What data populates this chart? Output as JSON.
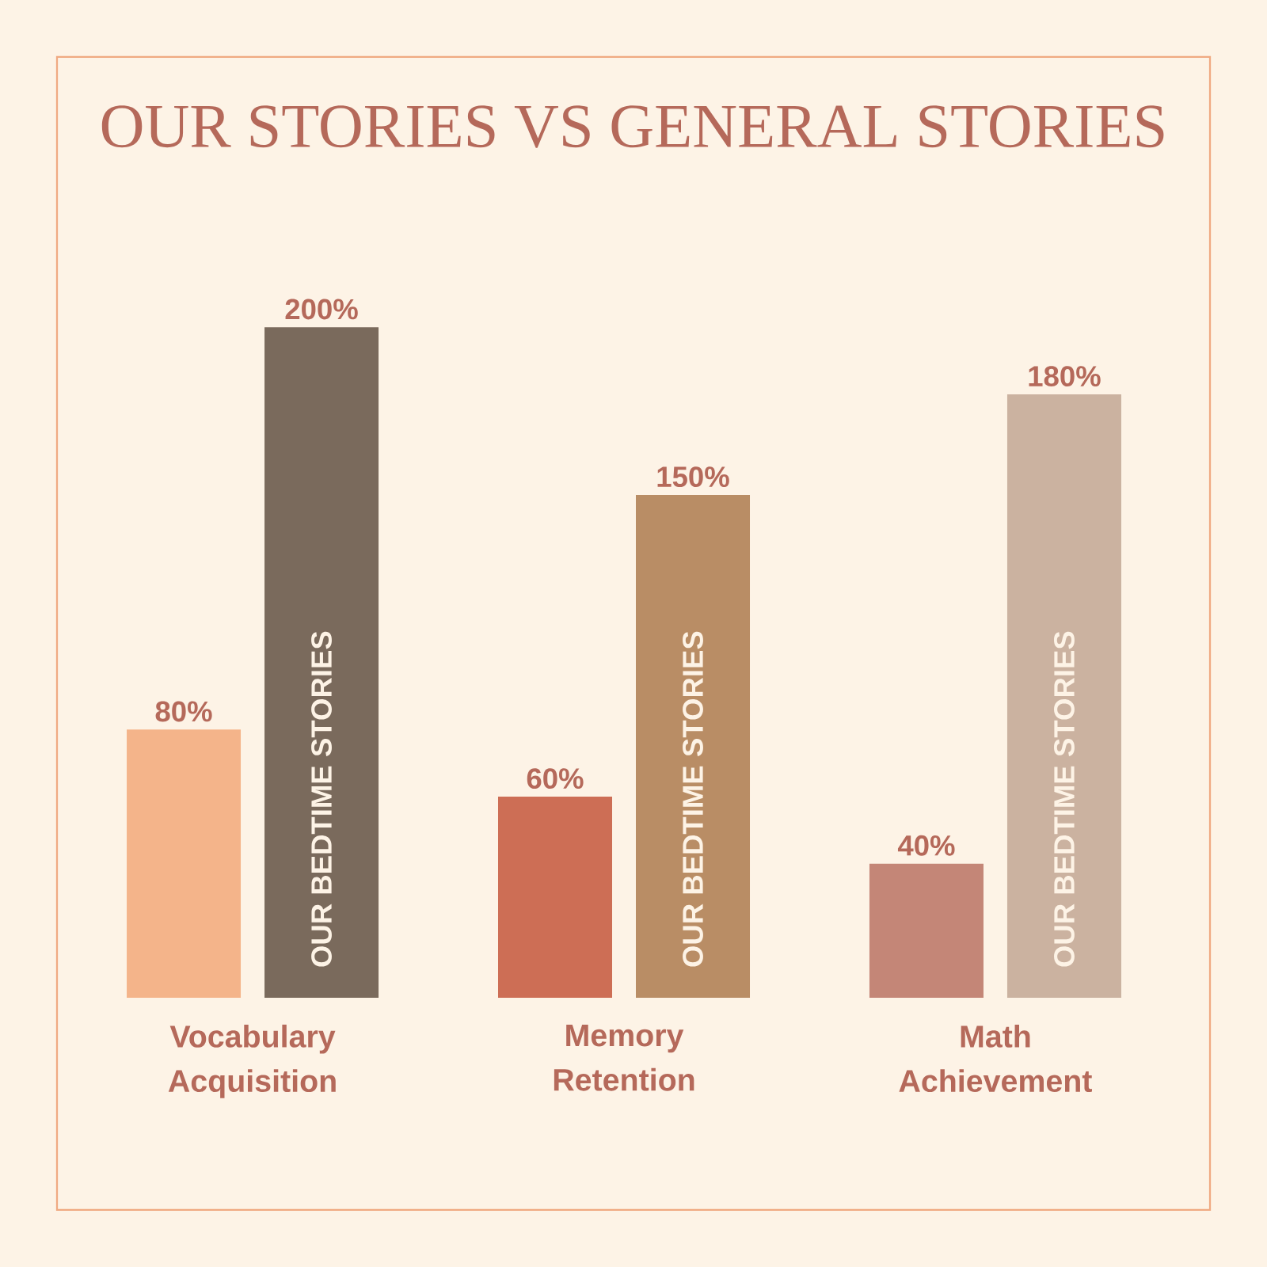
{
  "chart_data": {
    "type": "bar",
    "title": "OUR STORIES VS GENERAL STORIES",
    "categories": [
      "Vocabulary Acquisition",
      "Memory Retention",
      "Math Achievement"
    ],
    "series": [
      {
        "colors": [
          "#f4b48a",
          "#cd6e55",
          "#c48677"
        ],
        "values": [
          80,
          60,
          40
        ],
        "value_labels": [
          "80%",
          "60%",
          "40%"
        ]
      },
      {
        "name": "OUR BEDTIME STORIES",
        "colors": [
          "#7a6a5c",
          "#b98d65",
          "#cbb2a0"
        ],
        "values": [
          200,
          150,
          180
        ],
        "value_labels": [
          "200%",
          "150%",
          "180%"
        ]
      }
    ]
  }
}
